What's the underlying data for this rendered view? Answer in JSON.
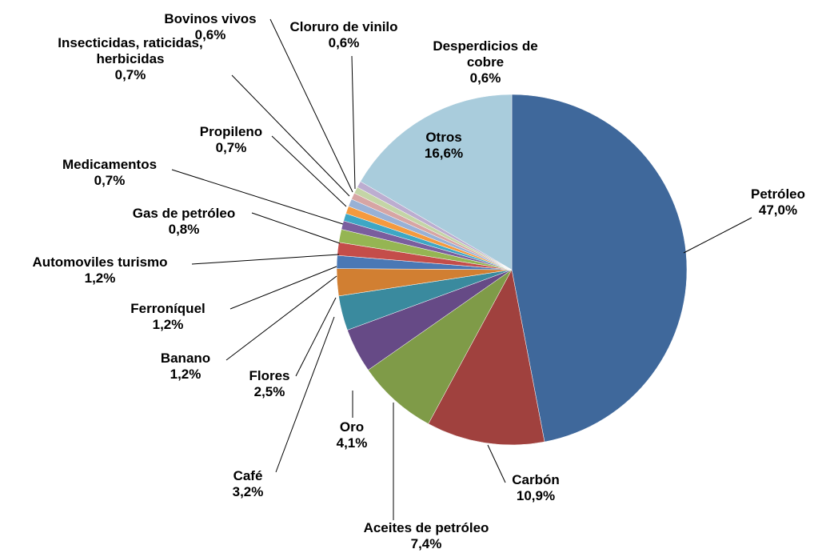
{
  "chart_data": {
    "type": "pie",
    "categories": [
      "Petróleo",
      "Carbón",
      "Aceites de petróleo",
      "Oro",
      "Café",
      "Flores",
      "Banano",
      "Ferroníquel",
      "Automoviles turismo",
      "Gas de petróleo",
      "Medicamentos",
      "Propileno",
      "Insecticidas, raticidas, herbicidas",
      "Bovinos vivos",
      "Cloruro de vinilo",
      "Desperdicios de cobre",
      "Otros"
    ],
    "values": [
      47.0,
      10.9,
      7.4,
      4.1,
      3.2,
      2.5,
      1.2,
      1.2,
      1.2,
      0.8,
      0.7,
      0.7,
      0.7,
      0.6,
      0.6,
      0.6,
      16.6
    ],
    "value_labels": [
      "47,0%",
      "10,9%",
      "7,4%",
      "4,1%",
      "3,2%",
      "2,5%",
      "1,2%",
      "1,2%",
      "1,2%",
      "0,8%",
      "0,7%",
      "0,7%",
      "0,7%",
      "0,6%",
      "0,6%",
      "0,6%",
      "16,6%"
    ],
    "colors": [
      "#3f689b",
      "#a0413e",
      "#7f9b48",
      "#664a86",
      "#3a8a9e",
      "#d17f32",
      "#4a78b5",
      "#c44d4a",
      "#95b553",
      "#7a5e9e",
      "#3ea7c5",
      "#f59a3e",
      "#98b1d6",
      "#d7a5a4",
      "#c4d5a6",
      "#bcadd0",
      "#a9ccdc"
    ]
  }
}
